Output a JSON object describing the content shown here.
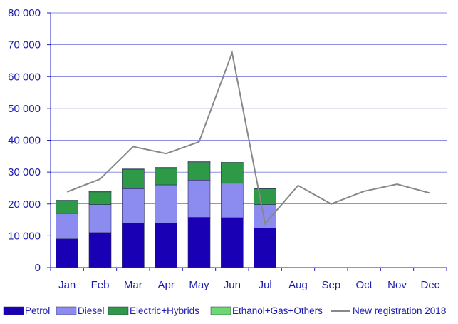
{
  "chart_data": {
    "type": "bar",
    "stacked": true,
    "categories": [
      "Jan",
      "Feb",
      "Mar",
      "Apr",
      "May",
      "Jun",
      "Jul",
      "Aug",
      "Sep",
      "Oct",
      "Nov",
      "Dec"
    ],
    "series": [
      {
        "name": "Petrol",
        "type": "bar",
        "color": "#1a00b4",
        "values": [
          9000,
          11000,
          14000,
          14000,
          15800,
          15700,
          12400,
          null,
          null,
          null,
          null,
          null
        ]
      },
      {
        "name": "Diesel",
        "type": "bar",
        "color": "#8c8cf0",
        "values": [
          8000,
          8800,
          10800,
          12000,
          11700,
          10800,
          7400,
          null,
          null,
          null,
          null,
          null
        ]
      },
      {
        "name": "Electric+Hybrids",
        "type": "bar",
        "color": "#2e9a48",
        "values": [
          4000,
          4000,
          6000,
          5200,
          5500,
          6300,
          5000,
          null,
          null,
          null,
          null,
          null
        ]
      },
      {
        "name": "Ethanol+Gas+Others",
        "type": "bar",
        "color": "#6cd870",
        "values": [
          200,
          200,
          200,
          300,
          300,
          300,
          200,
          null,
          null,
          null,
          null,
          null
        ]
      },
      {
        "name": "New registration 2018",
        "type": "line",
        "color": "#888888",
        "values": [
          23800,
          27800,
          38000,
          35800,
          39500,
          67500,
          13800,
          25800,
          20000,
          24000,
          26200,
          23400
        ]
      }
    ],
    "ylim": [
      0,
      80000
    ],
    "yticks": [
      "0",
      "10 000",
      "20 000",
      "30 000",
      "40 000",
      "50 000",
      "60 000",
      "70 000",
      "80 000"
    ],
    "title": "",
    "xlabel": "",
    "ylabel": "",
    "grid": true,
    "legend_position": "bottom"
  }
}
